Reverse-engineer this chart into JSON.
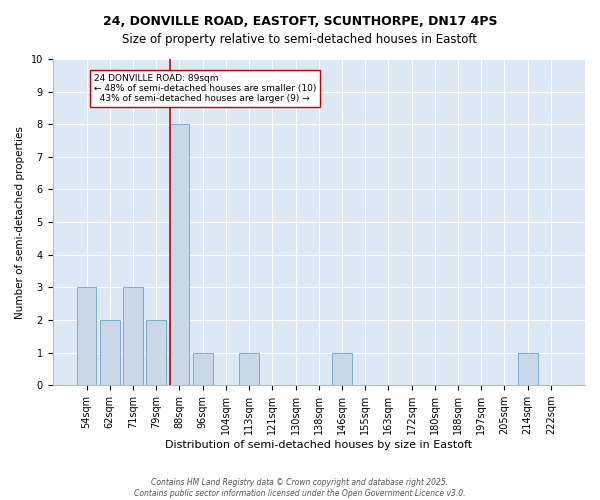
{
  "title": "24, DONVILLE ROAD, EASTOFT, SCUNTHORPE, DN17 4PS",
  "subtitle": "Size of property relative to semi-detached houses in Eastoft",
  "xlabel": "Distribution of semi-detached houses by size in Eastoft",
  "ylabel": "Number of semi-detached properties",
  "categories": [
    "54sqm",
    "62sqm",
    "71sqm",
    "79sqm",
    "88sqm",
    "96sqm",
    "104sqm",
    "113sqm",
    "121sqm",
    "130sqm",
    "138sqm",
    "146sqm",
    "155sqm",
    "163sqm",
    "172sqm",
    "180sqm",
    "188sqm",
    "197sqm",
    "205sqm",
    "214sqm",
    "222sqm"
  ],
  "values": [
    3,
    2,
    3,
    2,
    8,
    1,
    0,
    1,
    0,
    0,
    0,
    1,
    0,
    0,
    0,
    0,
    0,
    0,
    0,
    1,
    0
  ],
  "bar_color": "#c9d9ea",
  "bar_edge_color": "#7aaccc",
  "highlight_bar_index": 4,
  "highlight_line_color": "#cc0000",
  "ylim": [
    0,
    10
  ],
  "yticks": [
    0,
    1,
    2,
    3,
    4,
    5,
    6,
    7,
    8,
    9,
    10
  ],
  "annotation_text": "24 DONVILLE ROAD: 89sqm\n← 48% of semi-detached houses are smaller (10)\n  43% of semi-detached houses are larger (9) →",
  "annotation_box_color": "#ffffff",
  "annotation_box_edge_color": "#cc0000",
  "footer_line1": "Contains HM Land Registry data © Crown copyright and database right 2025.",
  "footer_line2": "Contains public sector information licensed under the Open Government Licence v3.0.",
  "background_color": "#ffffff",
  "plot_bg_color": "#dce9f5",
  "grid_color": "#ffffff",
  "title_fontsize": 9,
  "subtitle_fontsize": 8.5,
  "xlabel_fontsize": 8,
  "ylabel_fontsize": 7.5,
  "tick_fontsize": 7,
  "footer_fontsize": 5.5,
  "annotation_fontsize": 6.5
}
